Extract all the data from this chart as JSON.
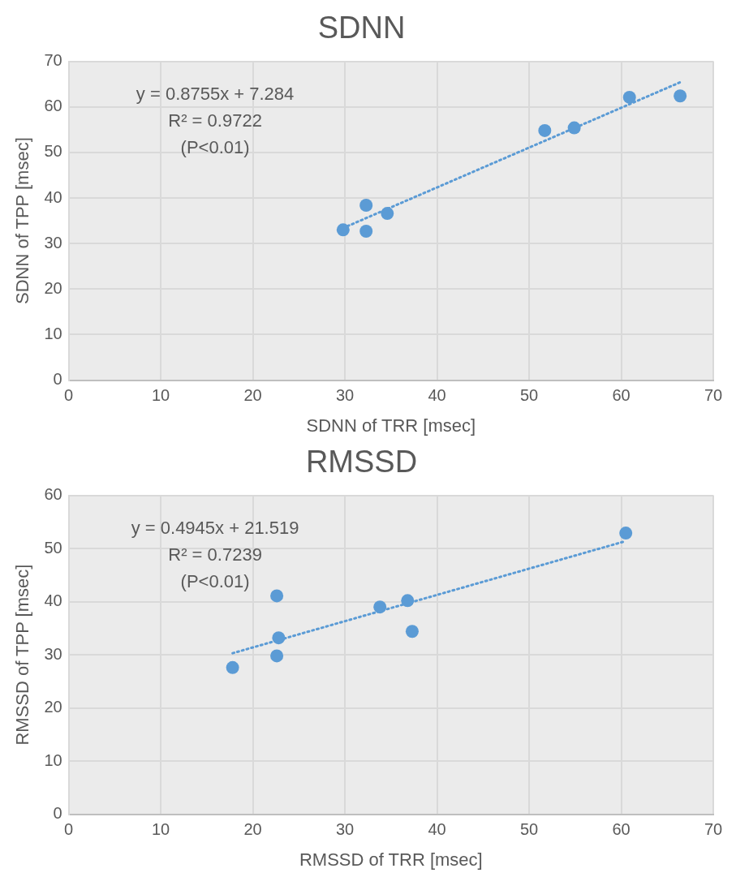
{
  "chart_data": [
    {
      "type": "scatter",
      "title": "SDNN",
      "xlabel": "SDNN of TRR [msec]",
      "ylabel": "SDNN of TPP [msec]",
      "xlim": [
        0,
        70
      ],
      "xticks": [
        0,
        10,
        20,
        30,
        40,
        50,
        60,
        70
      ],
      "ylim": [
        0,
        70
      ],
      "yticks": [
        0,
        10,
        20,
        30,
        40,
        50,
        60,
        70
      ],
      "grid": true,
      "legend": false,
      "marker": "circle",
      "series": [
        {
          "color": "#5b9bd5",
          "x": [
            29.8,
            32.3,
            32.3,
            34.6,
            51.7,
            54.9,
            60.9,
            66.4
          ],
          "values": [
            33,
            38.4,
            32.7,
            36.6,
            54.8,
            55.4,
            62.1,
            62.4
          ]
        },
        {
          "type": "line",
          "color": "#5b9bd5",
          "line_style": "dotted",
          "marker": "none",
          "x": [
            29.8,
            66.4
          ],
          "values": [
            33.4,
            65.4
          ]
        }
      ],
      "annotations": [
        "y = 0.8755x + 7.284",
        "R² = 0.9722",
        "(P<0.01)"
      ]
    },
    {
      "type": "scatter",
      "title": "RMSSD",
      "xlabel": "RMSSD of TRR [msec]",
      "ylabel": "RMSSD of TPP [msec]",
      "xlim": [
        0,
        70
      ],
      "xticks": [
        0,
        10,
        20,
        30,
        40,
        50,
        60,
        70
      ],
      "ylim": [
        0,
        60
      ],
      "yticks": [
        0,
        10,
        20,
        30,
        40,
        50,
        60
      ],
      "grid": true,
      "legend": false,
      "marker": "circle",
      "series": [
        {
          "color": "#5b9bd5",
          "x": [
            17.8,
            22.6,
            22.8,
            22.6,
            33.8,
            36.8,
            37.3,
            60.5
          ],
          "values": [
            27.6,
            41.1,
            33.2,
            29.8,
            39,
            40.2,
            34.4,
            52.9
          ]
        },
        {
          "type": "line",
          "color": "#5b9bd5",
          "line_style": "dotted",
          "marker": "none",
          "x": [
            17.8,
            60.5
          ],
          "values": [
            30.3,
            51.4
          ]
        }
      ],
      "annotations": [
        "y = 0.4945x + 21.519",
        "R² = 0.7239",
        "(P<0.01)"
      ]
    }
  ]
}
